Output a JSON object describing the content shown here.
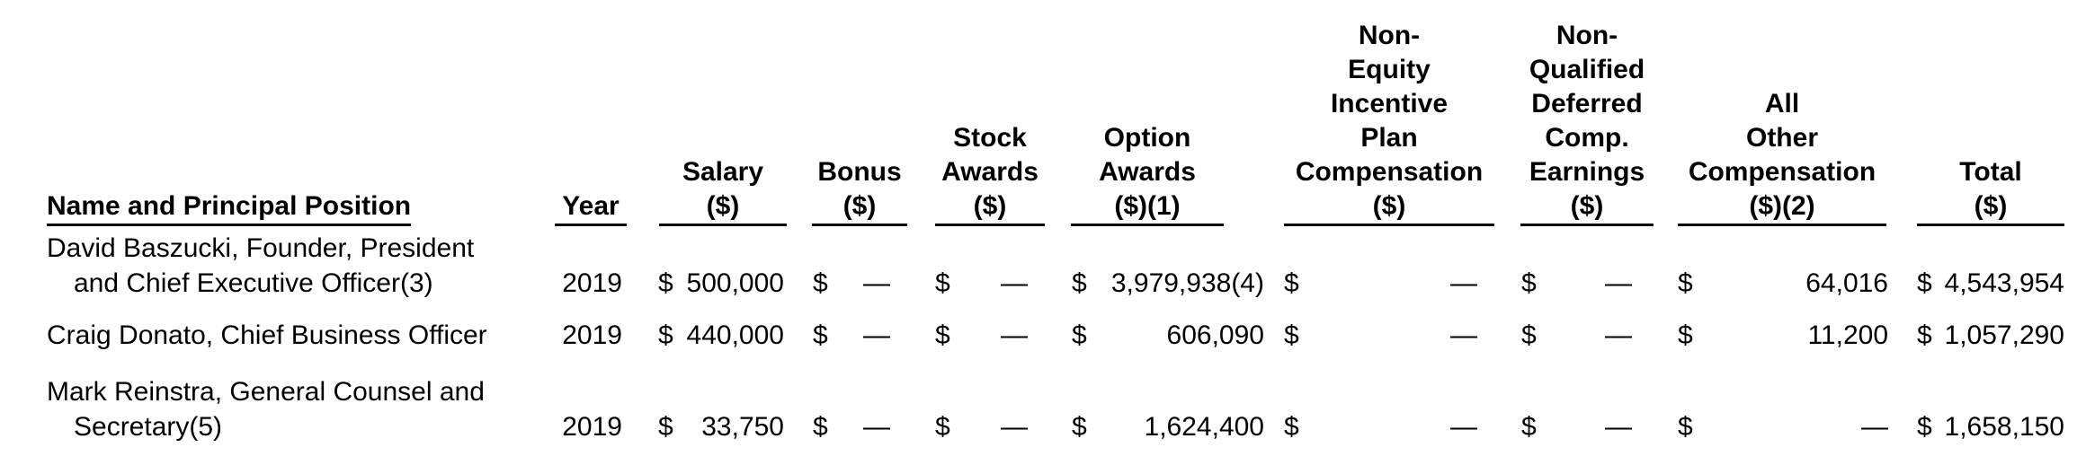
{
  "table": {
    "headers": {
      "name": [
        "Name and Principal Position"
      ],
      "year": [
        "Year"
      ],
      "salary": [
        "Salary",
        "($)"
      ],
      "bonus": [
        "Bonus",
        "($)"
      ],
      "stock": [
        "Stock",
        "Awards",
        "($)"
      ],
      "option": [
        "Option",
        "Awards",
        "($)(1)"
      ],
      "nonequity": [
        "Non-",
        "Equity",
        "Incentive",
        "Plan",
        "Compensation",
        "($)"
      ],
      "nonqual": [
        "Non-",
        "Qualified",
        "Deferred",
        "Comp.",
        "Earnings",
        "($)"
      ],
      "allother": [
        "All",
        "Other",
        "Compensation",
        "($)(2)"
      ],
      "total": [
        "Total",
        "($)"
      ]
    },
    "rows": [
      {
        "name_line1": "David Baszucki, Founder, President",
        "name_line2": "and Chief Executive Officer(3)",
        "year": "2019",
        "salary_sym": "$",
        "salary": "500,000",
        "bonus_sym": "$",
        "bonus": "—",
        "stock_sym": "$",
        "stock": "—",
        "option_sym": "$",
        "option": "3,979,938(4)",
        "nonequity_sym": "$",
        "nonequity": "—",
        "nonqual_sym": "$",
        "nonqual": "—",
        "allother_sym": "$",
        "allother": "64,016",
        "total_sym": "$",
        "total": "4,543,954"
      },
      {
        "name_line1": "Craig Donato, Chief Business Officer",
        "name_line2": "",
        "year": "2019",
        "salary_sym": "$",
        "salary": "440,000",
        "bonus_sym": "$",
        "bonus": "—",
        "stock_sym": "$",
        "stock": "—",
        "option_sym": "$",
        "option": "606,090",
        "nonequity_sym": "$",
        "nonequity": "—",
        "nonqual_sym": "$",
        "nonqual": "—",
        "allother_sym": "$",
        "allother": "11,200",
        "total_sym": "$",
        "total": "1,057,290"
      },
      {
        "name_line1": "Mark Reinstra, General Counsel and",
        "name_line2": "Secretary(5)",
        "year": "2019",
        "salary_sym": "$",
        "salary": "33,750",
        "bonus_sym": "$",
        "bonus": "—",
        "stock_sym": "$",
        "stock": "—",
        "option_sym": "$",
        "option": "1,624,400",
        "nonequity_sym": "$",
        "nonequity": "—",
        "nonqual_sym": "$",
        "nonqual": "—",
        "allother_sym": "$",
        "allother": "—",
        "total_sym": "$",
        "total": "1,658,150"
      }
    ]
  }
}
